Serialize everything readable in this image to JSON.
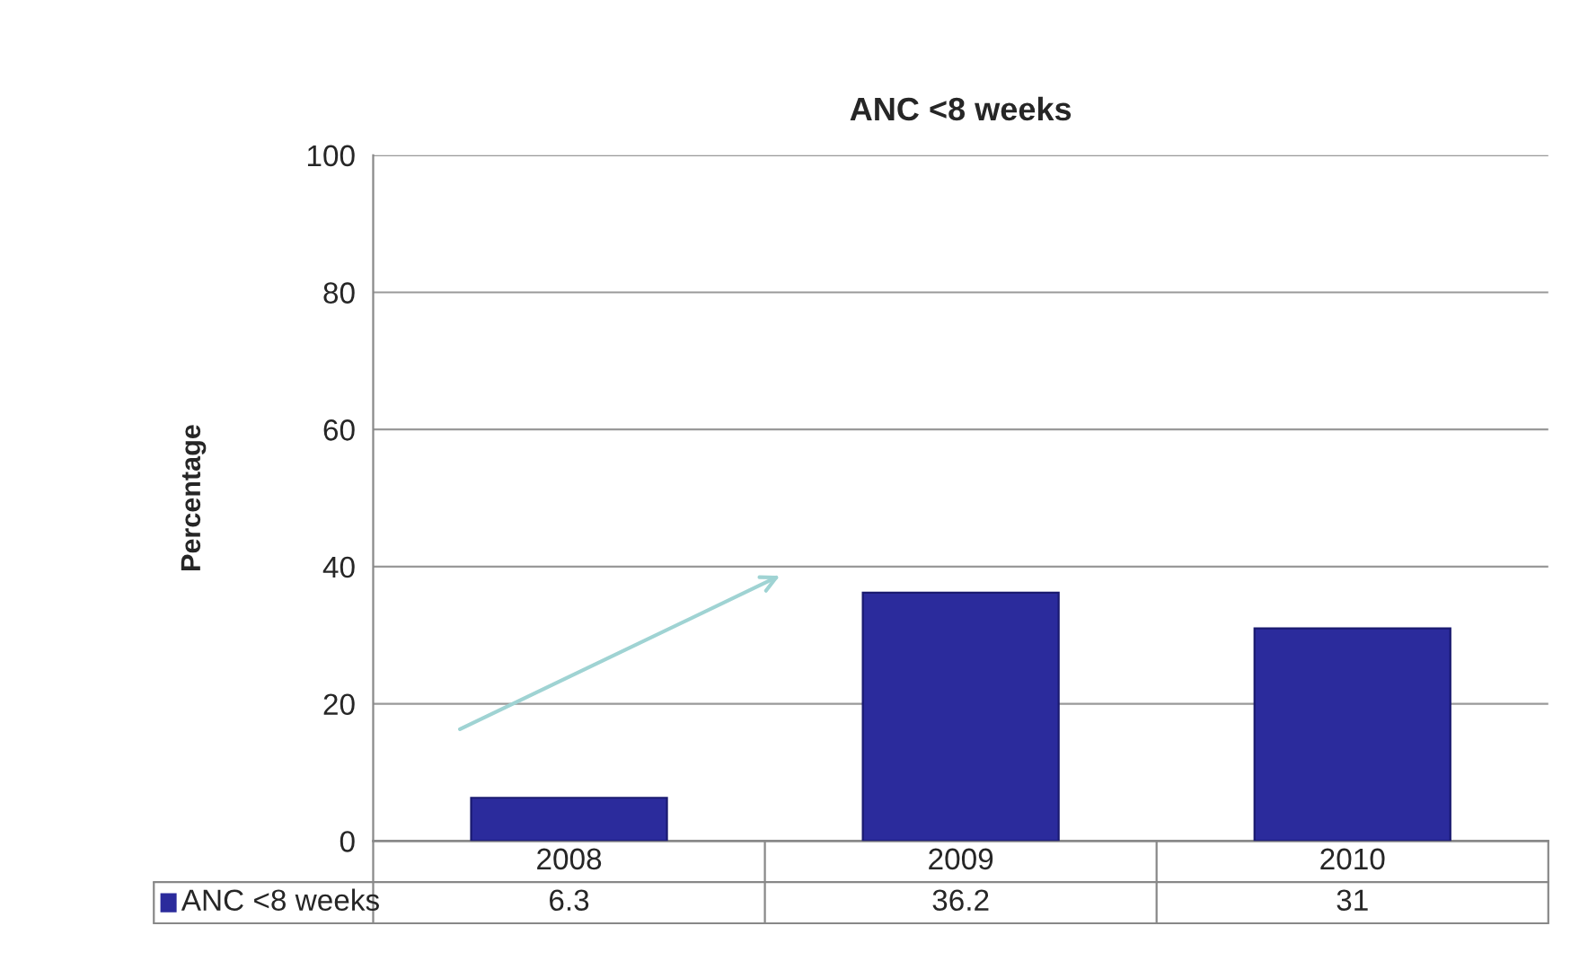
{
  "chart_data": {
    "type": "bar",
    "title": "ANC <8 weeks",
    "ylabel": "Percentage",
    "categories": [
      "2008",
      "2009",
      "2010"
    ],
    "series": [
      {
        "name": "ANC <8 weeks",
        "color": "#2b2b9c",
        "values": [
          6.3,
          36.2,
          31
        ]
      }
    ],
    "ylim": [
      0,
      100
    ],
    "yticks": [
      0,
      20,
      40,
      60,
      80,
      100
    ],
    "grid": "y",
    "data_labels": true,
    "legend": "bottom"
  }
}
